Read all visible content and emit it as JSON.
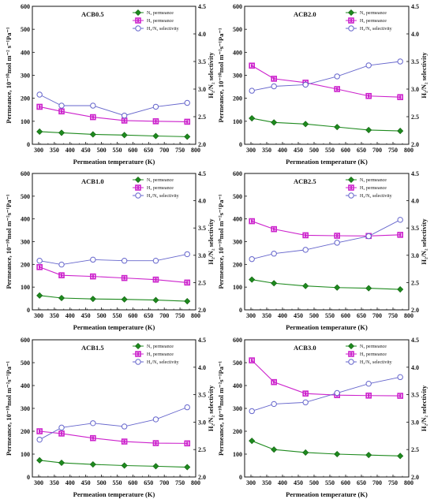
{
  "chart_data": [
    {
      "type": "line",
      "title": "ACB0.5",
      "xlabel": "Permeation temperature (K)",
      "ylabel": "Permeance, 10⁻¹⁰mol m⁻² s⁻¹Pa⁻¹",
      "y2label": "H₂/N₂ selectivity",
      "xlim": [
        280,
        800
      ],
      "ylim": [
        0,
        600
      ],
      "y2lim": [
        2.0,
        4.5
      ],
      "xticks": [
        300,
        350,
        400,
        450,
        500,
        550,
        600,
        650,
        700,
        750,
        800
      ],
      "yticks": [
        0,
        100,
        200,
        300,
        400,
        500,
        600
      ],
      "y2ticks": [
        2.0,
        2.5,
        3.0,
        3.5,
        4.0,
        4.5
      ],
      "legend_position": "top-right",
      "x": [
        303,
        373,
        473,
        573,
        673,
        773
      ],
      "series": [
        {
          "name": "N₂ permeance",
          "axis": "left",
          "color": "#1e8a1e",
          "marker": "diamond",
          "values": [
            55,
            50,
            43,
            40,
            36,
            33
          ]
        },
        {
          "name": "H₂ permeance",
          "axis": "right_no",
          "color": "#cc22cc",
          "marker": "square",
          "values": [
            163,
            143,
            118,
            103,
            100,
            98
          ]
        },
        {
          "name": "H₂/N₂ selectivity",
          "axis": "right",
          "color": "#6666cc",
          "marker": "circle",
          "values": [
            2.9,
            2.7,
            2.7,
            2.52,
            2.68,
            2.75
          ]
        }
      ]
    },
    {
      "type": "line",
      "title": "ACB2.0",
      "xlabel": "Permeation temperature (K)",
      "ylabel": "Permeance, 10⁻¹⁰mol m⁻²s⁻¹Pa⁻¹",
      "y2label": "H₂/N₂ selectivity",
      "xlim": [
        280,
        800
      ],
      "ylim": [
        0,
        600
      ],
      "y2lim": [
        2.0,
        4.5
      ],
      "xticks": [
        300,
        350,
        400,
        450,
        500,
        550,
        600,
        650,
        700,
        750,
        800
      ],
      "yticks": [
        0,
        100,
        200,
        300,
        400,
        500,
        600
      ],
      "y2ticks": [
        2.0,
        2.5,
        3.0,
        3.5,
        4.0,
        4.5
      ],
      "legend_position": "top-right",
      "x": [
        303,
        373,
        473,
        573,
        673,
        773
      ],
      "series": [
        {
          "name": "N₂ permeance",
          "axis": "left",
          "color": "#1e8a1e",
          "marker": "diamond",
          "values": [
            113,
            95,
            88,
            75,
            62,
            58
          ]
        },
        {
          "name": "H₂ permeance",
          "axis": "left",
          "color": "#cc22cc",
          "marker": "square",
          "values": [
            342,
            285,
            268,
            240,
            210,
            205
          ]
        },
        {
          "name": "H₂/N₂ selectivity",
          "axis": "right",
          "color": "#6666cc",
          "marker": "circle",
          "values": [
            2.97,
            3.05,
            3.08,
            3.23,
            3.43,
            3.5
          ]
        }
      ]
    },
    {
      "type": "line",
      "title": "ACB1.0",
      "xlabel": "Permeation temperature (K)",
      "ylabel": "Permeance, 10⁻¹⁰mol m⁻²s⁻¹Pa⁻¹",
      "y2label": "H₂/N₂ selectivity",
      "xlim": [
        280,
        800
      ],
      "ylim": [
        0,
        600
      ],
      "y2lim": [
        2.0,
        4.5
      ],
      "xticks": [
        300,
        350,
        400,
        450,
        500,
        550,
        600,
        650,
        700,
        750,
        800
      ],
      "yticks": [
        0,
        100,
        200,
        300,
        400,
        500,
        600
      ],
      "y2ticks": [
        2.0,
        2.5,
        3.0,
        3.5,
        4.0,
        4.5
      ],
      "legend_position": "top-right",
      "x": [
        303,
        373,
        473,
        573,
        673,
        773
      ],
      "series": [
        {
          "name": "N₂ permeance",
          "axis": "left",
          "color": "#1e8a1e",
          "marker": "diamond",
          "values": [
            63,
            52,
            48,
            46,
            43,
            38
          ]
        },
        {
          "name": "H₂ permeance",
          "axis": "left",
          "color": "#cc22cc",
          "marker": "square",
          "values": [
            188,
            152,
            147,
            140,
            133,
            120
          ]
        },
        {
          "name": "H₂/N₂ selectivity",
          "axis": "right",
          "color": "#6666cc",
          "marker": "circle",
          "values": [
            2.9,
            2.83,
            2.92,
            2.9,
            2.9,
            3.02
          ]
        }
      ]
    },
    {
      "type": "line",
      "title": "ACB2.5",
      "xlabel": "Permeation temperature (K)",
      "ylabel": "Permeance, 10⁻¹⁰mol m⁻²s⁻¹Pa⁻¹",
      "y2label": "H₂/N₂ selectivity",
      "xlim": [
        280,
        800
      ],
      "ylim": [
        0,
        600
      ],
      "y2lim": [
        2.0,
        4.5
      ],
      "xticks": [
        300,
        350,
        400,
        450,
        500,
        550,
        600,
        650,
        700,
        750,
        800
      ],
      "yticks": [
        0,
        100,
        200,
        300,
        400,
        500,
        600
      ],
      "y2ticks": [
        2.0,
        2.5,
        3.0,
        3.5,
        4.0,
        4.5
      ],
      "legend_position": "top-right",
      "x": [
        303,
        373,
        473,
        573,
        673,
        773
      ],
      "series": [
        {
          "name": "N₂ permeance",
          "axis": "left",
          "color": "#1e8a1e",
          "marker": "diamond",
          "values": [
            133,
            117,
            105,
            98,
            95,
            90
          ]
        },
        {
          "name": "H₂ permeance",
          "axis": "left",
          "color": "#cc22cc",
          "marker": "square",
          "values": [
            390,
            355,
            328,
            326,
            325,
            330
          ]
        },
        {
          "name": "H₂/N₂ selectivity",
          "axis": "right",
          "color": "#6666cc",
          "marker": "circle",
          "values": [
            2.93,
            3.03,
            3.1,
            3.23,
            3.35,
            3.65
          ]
        }
      ]
    },
    {
      "type": "line",
      "title": "ACB1.5",
      "xlabel": "Permeation temperature (K)",
      "ylabel": "Permeance, 10⁻¹⁰mol m⁻²s⁻¹Pa⁻¹",
      "y2label": "H₂/N₂ selectivity",
      "xlim": [
        280,
        800
      ],
      "ylim": [
        0,
        600
      ],
      "y2lim": [
        2.0,
        4.5
      ],
      "xticks": [
        300,
        350,
        400,
        450,
        500,
        550,
        600,
        650,
        700,
        750,
        800
      ],
      "yticks": [
        0,
        100,
        200,
        300,
        400,
        500,
        600
      ],
      "y2ticks": [
        2.0,
        2.5,
        3.0,
        3.5,
        4.0,
        4.5
      ],
      "legend_position": "top-right",
      "x": [
        303,
        373,
        473,
        573,
        673,
        773
      ],
      "series": [
        {
          "name": "N₂ permeance",
          "axis": "left",
          "color": "#1e8a1e",
          "marker": "diamond",
          "values": [
            73,
            62,
            55,
            50,
            47,
            43
          ]
        },
        {
          "name": "H₂ permeance",
          "axis": "left",
          "color": "#cc22cc",
          "marker": "square",
          "values": [
            200,
            190,
            170,
            155,
            148,
            147
          ]
        },
        {
          "name": "H₂/N₂ selectivity",
          "axis": "right",
          "color": "#6666cc",
          "marker": "circle",
          "values": [
            2.68,
            2.9,
            2.98,
            2.92,
            3.05,
            3.27
          ]
        }
      ]
    },
    {
      "type": "line",
      "title": "ACB3.0",
      "xlabel": "Permeation temperature (K)",
      "ylabel": "Permeance, 10⁻¹⁰mol m⁻²s⁻¹Pa⁻¹",
      "y2label": "H₂/N₂ selectivity",
      "xlim": [
        280,
        800
      ],
      "ylim": [
        0,
        600
      ],
      "y2lim": [
        2.0,
        4.5
      ],
      "xticks": [
        300,
        350,
        400,
        450,
        500,
        550,
        600,
        650,
        700,
        750,
        800
      ],
      "yticks": [
        0,
        100,
        200,
        300,
        400,
        500,
        600
      ],
      "y2ticks": [
        2.0,
        2.5,
        3.0,
        3.5,
        4.0,
        4.5
      ],
      "legend_position": "top-right",
      "x": [
        303,
        373,
        473,
        573,
        673,
        773
      ],
      "series": [
        {
          "name": "N₂ permeance",
          "axis": "left",
          "color": "#1e8a1e",
          "marker": "diamond",
          "values": [
            158,
            120,
            107,
            100,
            96,
            92
          ]
        },
        {
          "name": "H₂ permeance",
          "axis": "left",
          "color": "#cc22cc",
          "marker": "square",
          "values": [
            510,
            415,
            365,
            358,
            356,
            355
          ]
        },
        {
          "name": "H₂/N₂ selectivity",
          "axis": "right",
          "color": "#6666cc",
          "marker": "circle",
          "values": [
            3.2,
            3.33,
            3.36,
            3.53,
            3.7,
            3.82
          ]
        }
      ]
    }
  ]
}
